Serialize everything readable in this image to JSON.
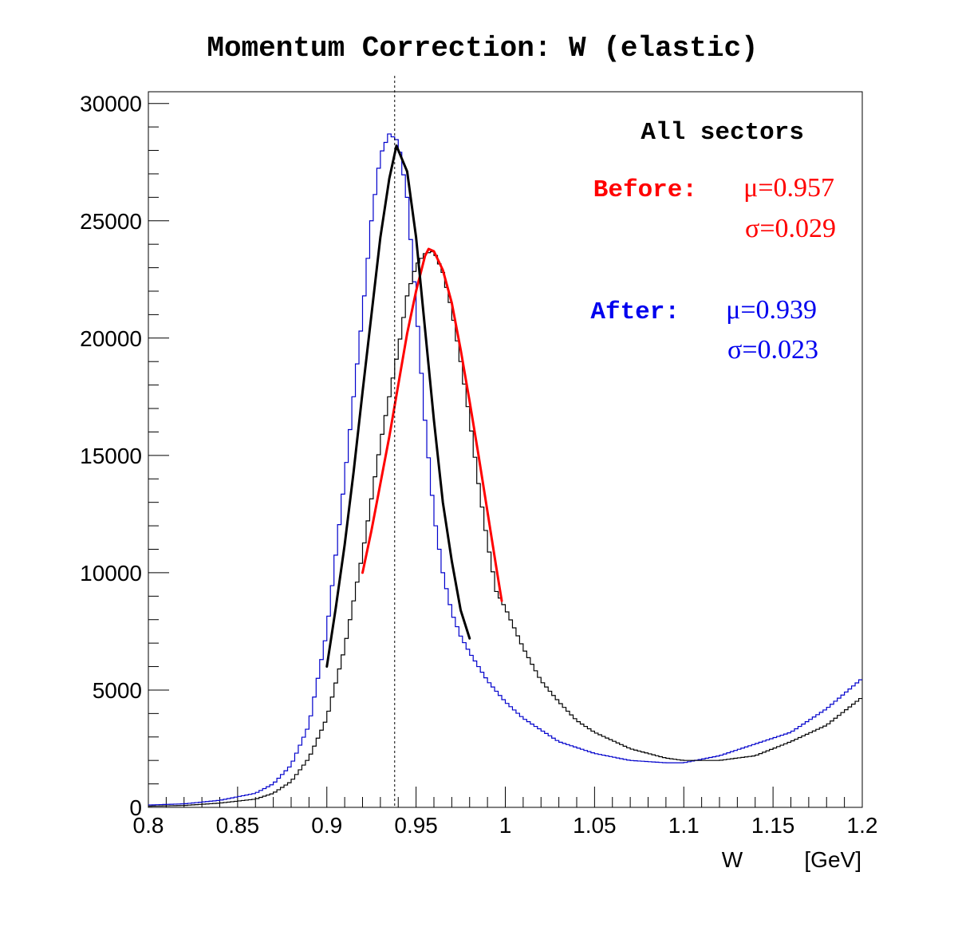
{
  "chart_data": {
    "type": "line",
    "title": "Momentum Correction: W (elastic)",
    "xlabel": "W",
    "xunit": "[GeV]",
    "ylabel": "",
    "xlim": [
      0.8,
      1.2
    ],
    "ylim": [
      0,
      30500
    ],
    "xticks": [
      0.8,
      0.85,
      0.9,
      0.95,
      1.0,
      1.05,
      1.1,
      1.15,
      1.2
    ],
    "xtick_labels": [
      "0.8",
      "0.85",
      "0.9",
      "0.95",
      "1",
      "1.05",
      "1.1",
      "1.15",
      "1.2"
    ],
    "yticks": [
      0,
      5000,
      10000,
      15000,
      20000,
      25000,
      30000
    ],
    "ytick_labels": [
      "0",
      "5000",
      "10000",
      "15000",
      "20000",
      "25000",
      "30000"
    ],
    "grid": false,
    "reference_line_x": 0.938,
    "annotations": {
      "header": "All sectors",
      "before_label": "Before:",
      "before_mu": "μ=0.957",
      "before_sigma": "σ=0.029",
      "after_label": "After:",
      "after_mu": "μ=0.939",
      "after_sigma": "σ=0.023"
    },
    "series": [
      {
        "color": "#0000cc",
        "style": "histogram",
        "x": [
          0.8,
          0.82,
          0.84,
          0.86,
          0.87,
          0.88,
          0.89,
          0.9,
          0.91,
          0.92,
          0.925,
          0.93,
          0.935,
          0.94,
          0.945,
          0.95,
          0.955,
          0.96,
          0.965,
          0.97,
          0.975,
          0.98,
          0.99,
          1.0,
          1.01,
          1.02,
          1.03,
          1.05,
          1.07,
          1.09,
          1.1,
          1.12,
          1.14,
          1.16,
          1.18,
          1.2
        ],
        "values": [
          100,
          150,
          300,
          600,
          1000,
          1800,
          3500,
          7500,
          14000,
          21000,
          25000,
          27800,
          28700,
          28400,
          26000,
          21500,
          16500,
          12500,
          10000,
          8300,
          7300,
          6600,
          5400,
          4500,
          3800,
          3300,
          2800,
          2300,
          2000,
          1900,
          1900,
          2200,
          2700,
          3200,
          4200,
          5500
        ]
      },
      {
        "color": "#000000",
        "style": "histogram",
        "x": [
          0.8,
          0.82,
          0.84,
          0.86,
          0.87,
          0.88,
          0.89,
          0.9,
          0.91,
          0.92,
          0.93,
          0.94,
          0.945,
          0.95,
          0.955,
          0.96,
          0.965,
          0.97,
          0.975,
          0.98,
          0.985,
          0.99,
          0.995,
          1.0,
          1.01,
          1.02,
          1.03,
          1.04,
          1.05,
          1.07,
          1.09,
          1.1,
          1.12,
          1.14,
          1.16,
          1.18,
          1.2
        ],
        "values": [
          50,
          80,
          180,
          350,
          600,
          1100,
          2100,
          3800,
          6800,
          10800,
          15500,
          19500,
          21800,
          23100,
          23600,
          23700,
          22800,
          21200,
          19000,
          16600,
          13800,
          11300,
          9200,
          8500,
          6800,
          5400,
          4500,
          3700,
          3200,
          2500,
          2100,
          2000,
          2000,
          2200,
          2800,
          3500,
          4700
        ]
      },
      {
        "name": "Before fit",
        "color": "#ff0000",
        "style": "fit",
        "x": [
          0.92,
          0.925,
          0.93,
          0.935,
          0.94,
          0.945,
          0.95,
          0.955,
          0.957,
          0.96,
          0.965,
          0.97,
          0.975,
          0.98,
          0.985,
          0.99,
          0.995,
          0.998
        ],
        "values": [
          10000,
          11800,
          13800,
          15800,
          18000,
          20200,
          22000,
          23500,
          23800,
          23700,
          22900,
          21500,
          19500,
          17300,
          15000,
          12600,
          10200,
          8800
        ]
      },
      {
        "name": "After fit",
        "color": "#000000",
        "style": "fit",
        "x": [
          0.9,
          0.905,
          0.91,
          0.915,
          0.92,
          0.925,
          0.93,
          0.935,
          0.939,
          0.945,
          0.95,
          0.955,
          0.96,
          0.965,
          0.97,
          0.975,
          0.98
        ],
        "values": [
          6000,
          8500,
          11200,
          14300,
          17700,
          21000,
          24300,
          26800,
          28200,
          27100,
          24300,
          20400,
          16500,
          13000,
          10500,
          8400,
          7200
        ]
      }
    ]
  }
}
